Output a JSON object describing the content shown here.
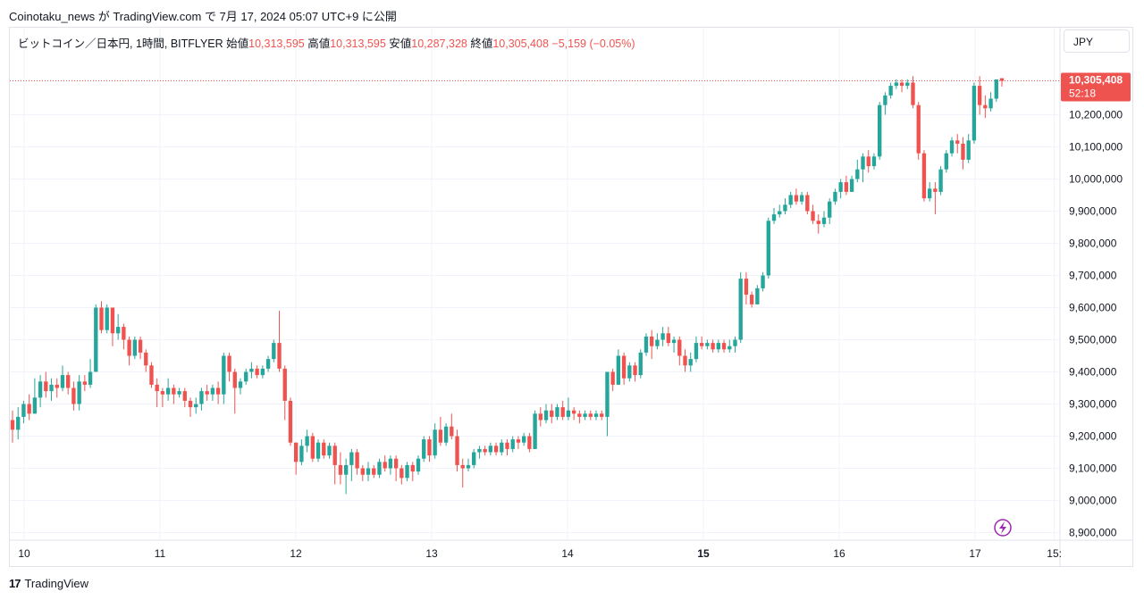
{
  "header": {
    "published_text": "Coinotaku_news が TradingView.com で 7月 17, 2024 05:07 UTC+9 に公開"
  },
  "legend": {
    "symbol": "ビットコイン／日本円, 1時間, BITFLYER",
    "open_label": "始値",
    "open_value": "10,313,595",
    "high_label": "高値",
    "high_value": "10,313,595",
    "low_label": "安値",
    "low_value": "10,287,328",
    "close_label": "終値",
    "close_value": "10,305,408",
    "change": "−5,159 (−0.05%)"
  },
  "currency_button": "JPY",
  "price_tag": {
    "price": "10,305,408",
    "countdown": "52:18"
  },
  "footer": {
    "brand": "TradingView",
    "logo_text": "17"
  },
  "colors": {
    "up": "#26a69a",
    "down": "#ef5350",
    "grid": "#f0f3fa",
    "text": "#131722",
    "lightning": "#9c27b0"
  },
  "icons": {
    "lightning": "lightning-icon",
    "logo": "tradingview-logo-icon"
  },
  "chart_data": {
    "type": "candlestick",
    "title": "ビットコイン／日本円, 1時間, BITFLYER",
    "ylim": [
      8880000,
      10380000
    ],
    "y_ticks": [
      8900000,
      9000000,
      9100000,
      9200000,
      9300000,
      9400000,
      9500000,
      9600000,
      9700000,
      9800000,
      9900000,
      10000000,
      10100000,
      10200000
    ],
    "y_tick_labels": [
      "8,900,000",
      "9,000,000",
      "9,100,000",
      "9,200,000",
      "9,300,000",
      "9,400,000",
      "9,500,000",
      "9,600,000",
      "9,700,000",
      "9,800,000",
      "9,900,000",
      "10,000,000",
      "10,100,000",
      "10,200,000"
    ],
    "x_ticks": [
      {
        "day": 10,
        "label": "10",
        "bold": false
      },
      {
        "day": 11,
        "label": "11",
        "bold": false
      },
      {
        "day": 12,
        "label": "12",
        "bold": false
      },
      {
        "day": 13,
        "label": "13",
        "bold": false
      },
      {
        "day": 14,
        "label": "14",
        "bold": false
      },
      {
        "day": 15,
        "label": "15",
        "bold": true
      },
      {
        "day": 16,
        "label": "16",
        "bold": false
      },
      {
        "day": 17,
        "label": "17",
        "bold": false
      },
      {
        "day": 17.583,
        "label": "15:",
        "bold": false
      }
    ],
    "last_price": 10305408,
    "candles": [
      [
        9250000,
        9220000,
        9280000,
        9180000
      ],
      [
        9220000,
        9260000,
        9290000,
        9190000
      ],
      [
        9260000,
        9300000,
        9310000,
        9240000
      ],
      [
        9300000,
        9270000,
        9330000,
        9250000
      ],
      [
        9270000,
        9320000,
        9380000,
        9270000
      ],
      [
        9320000,
        9370000,
        9390000,
        9290000
      ],
      [
        9370000,
        9340000,
        9400000,
        9320000
      ],
      [
        9340000,
        9360000,
        9380000,
        9310000
      ],
      [
        9360000,
        9350000,
        9380000,
        9320000
      ],
      [
        9350000,
        9390000,
        9420000,
        9340000
      ],
      [
        9390000,
        9350000,
        9400000,
        9330000
      ],
      [
        9350000,
        9300000,
        9370000,
        9280000
      ],
      [
        9300000,
        9370000,
        9390000,
        9280000
      ],
      [
        9370000,
        9360000,
        9390000,
        9340000
      ],
      [
        9360000,
        9400000,
        9440000,
        9350000
      ],
      [
        9400000,
        9600000,
        9610000,
        9400000
      ],
      [
        9600000,
        9530000,
        9620000,
        9520000
      ],
      [
        9530000,
        9600000,
        9610000,
        9520000
      ],
      [
        9600000,
        9520000,
        9600000,
        9480000
      ],
      [
        9520000,
        9540000,
        9580000,
        9500000
      ],
      [
        9540000,
        9500000,
        9550000,
        9470000
      ],
      [
        9500000,
        9450000,
        9510000,
        9420000
      ],
      [
        9450000,
        9500000,
        9510000,
        9440000
      ],
      [
        9500000,
        9460000,
        9510000,
        9440000
      ],
      [
        9460000,
        9420000,
        9470000,
        9400000
      ],
      [
        9420000,
        9360000,
        9430000,
        9350000
      ],
      [
        9360000,
        9340000,
        9380000,
        9290000
      ],
      [
        9340000,
        9330000,
        9350000,
        9290000
      ],
      [
        9330000,
        9350000,
        9380000,
        9310000
      ],
      [
        9350000,
        9330000,
        9360000,
        9300000
      ],
      [
        9330000,
        9340000,
        9350000,
        9320000
      ],
      [
        9340000,
        9310000,
        9350000,
        9290000
      ],
      [
        9310000,
        9290000,
        9320000,
        9260000
      ],
      [
        9290000,
        9300000,
        9320000,
        9270000
      ],
      [
        9300000,
        9340000,
        9350000,
        9280000
      ],
      [
        9340000,
        9330000,
        9360000,
        9310000
      ],
      [
        9330000,
        9350000,
        9360000,
        9310000
      ],
      [
        9350000,
        9330000,
        9370000,
        9300000
      ],
      [
        9330000,
        9450000,
        9460000,
        9300000
      ],
      [
        9450000,
        9400000,
        9460000,
        9370000
      ],
      [
        9400000,
        9350000,
        9410000,
        9270000
      ],
      [
        9350000,
        9370000,
        9380000,
        9330000
      ],
      [
        9370000,
        9400000,
        9410000,
        9360000
      ],
      [
        9400000,
        9410000,
        9430000,
        9380000
      ],
      [
        9410000,
        9390000,
        9420000,
        9380000
      ],
      [
        9390000,
        9410000,
        9420000,
        9380000
      ],
      [
        9410000,
        9440000,
        9450000,
        9400000
      ],
      [
        9440000,
        9490000,
        9500000,
        9430000
      ],
      [
        9490000,
        9410000,
        9590000,
        9400000
      ],
      [
        9410000,
        9310000,
        9420000,
        9250000
      ],
      [
        9310000,
        9180000,
        9320000,
        9170000
      ],
      [
        9180000,
        9120000,
        9180000,
        9080000
      ],
      [
        9120000,
        9170000,
        9190000,
        9110000
      ],
      [
        9170000,
        9200000,
        9220000,
        9150000
      ],
      [
        9200000,
        9130000,
        9210000,
        9120000
      ],
      [
        9130000,
        9180000,
        9190000,
        9120000
      ],
      [
        9180000,
        9140000,
        9190000,
        9130000
      ],
      [
        9140000,
        9170000,
        9180000,
        9130000
      ],
      [
        9170000,
        9110000,
        9180000,
        9050000
      ],
      [
        9110000,
        9080000,
        9150000,
        9050000
      ],
      [
        9080000,
        9110000,
        9130000,
        9020000
      ],
      [
        9110000,
        9150000,
        9160000,
        9060000
      ],
      [
        9150000,
        9100000,
        9160000,
        9080000
      ],
      [
        9100000,
        9080000,
        9110000,
        9060000
      ],
      [
        9080000,
        9100000,
        9120000,
        9060000
      ],
      [
        9100000,
        9080000,
        9110000,
        9070000
      ],
      [
        9080000,
        9120000,
        9130000,
        9070000
      ],
      [
        9120000,
        9100000,
        9140000,
        9090000
      ],
      [
        9100000,
        9130000,
        9140000,
        9080000
      ],
      [
        9130000,
        9100000,
        9140000,
        9060000
      ],
      [
        9100000,
        9070000,
        9110000,
        9050000
      ],
      [
        9070000,
        9110000,
        9120000,
        9060000
      ],
      [
        9110000,
        9090000,
        9120000,
        9060000
      ],
      [
        9090000,
        9130000,
        9140000,
        9080000
      ],
      [
        9130000,
        9190000,
        9200000,
        9120000
      ],
      [
        9190000,
        9140000,
        9200000,
        9120000
      ],
      [
        9140000,
        9220000,
        9240000,
        9130000
      ],
      [
        9220000,
        9180000,
        9260000,
        9170000
      ],
      [
        9180000,
        9230000,
        9240000,
        9170000
      ],
      [
        9230000,
        9200000,
        9270000,
        9190000
      ],
      [
        9200000,
        9110000,
        9220000,
        9090000
      ],
      [
        9110000,
        9100000,
        9130000,
        9040000
      ],
      [
        9100000,
        9110000,
        9130000,
        9090000
      ],
      [
        9110000,
        9150000,
        9160000,
        9100000
      ],
      [
        9150000,
        9160000,
        9170000,
        9130000
      ],
      [
        9160000,
        9150000,
        9170000,
        9140000
      ],
      [
        9150000,
        9170000,
        9180000,
        9140000
      ],
      [
        9170000,
        9150000,
        9180000,
        9140000
      ],
      [
        9150000,
        9180000,
        9190000,
        9140000
      ],
      [
        9180000,
        9160000,
        9190000,
        9140000
      ],
      [
        9160000,
        9190000,
        9200000,
        9150000
      ],
      [
        9190000,
        9180000,
        9200000,
        9160000
      ],
      [
        9180000,
        9200000,
        9210000,
        9170000
      ],
      [
        9200000,
        9160000,
        9210000,
        9150000
      ],
      [
        9160000,
        9270000,
        9280000,
        9160000
      ],
      [
        9270000,
        9250000,
        9290000,
        9230000
      ],
      [
        9250000,
        9280000,
        9300000,
        9240000
      ],
      [
        9280000,
        9260000,
        9300000,
        9240000
      ],
      [
        9260000,
        9290000,
        9300000,
        9250000
      ],
      [
        9290000,
        9260000,
        9310000,
        9250000
      ],
      [
        9260000,
        9280000,
        9320000,
        9250000
      ],
      [
        9280000,
        9270000,
        9290000,
        9250000
      ],
      [
        9270000,
        9260000,
        9280000,
        9240000
      ],
      [
        9260000,
        9270000,
        9280000,
        9250000
      ],
      [
        9270000,
        9260000,
        9280000,
        9250000
      ],
      [
        9260000,
        9270000,
        9280000,
        9250000
      ],
      [
        9270000,
        9260000,
        9280000,
        9250000
      ],
      [
        9260000,
        9400000,
        9400000,
        9200000
      ],
      [
        9400000,
        9360000,
        9410000,
        9340000
      ],
      [
        9360000,
        9450000,
        9470000,
        9360000
      ],
      [
        9450000,
        9380000,
        9460000,
        9360000
      ],
      [
        9380000,
        9420000,
        9430000,
        9370000
      ],
      [
        9420000,
        9390000,
        9430000,
        9370000
      ],
      [
        9390000,
        9460000,
        9470000,
        9380000
      ],
      [
        9460000,
        9510000,
        9520000,
        9450000
      ],
      [
        9510000,
        9480000,
        9530000,
        9440000
      ],
      [
        9480000,
        9500000,
        9520000,
        9470000
      ],
      [
        9500000,
        9520000,
        9540000,
        9480000
      ],
      [
        9520000,
        9490000,
        9540000,
        9480000
      ],
      [
        9490000,
        9500000,
        9510000,
        9460000
      ],
      [
        9500000,
        9450000,
        9510000,
        9420000
      ],
      [
        9450000,
        9420000,
        9470000,
        9400000
      ],
      [
        9420000,
        9440000,
        9460000,
        9400000
      ],
      [
        9440000,
        9490000,
        9510000,
        9430000
      ],
      [
        9490000,
        9480000,
        9510000,
        9470000
      ],
      [
        9480000,
        9490000,
        9500000,
        9470000
      ],
      [
        9490000,
        9470000,
        9500000,
        9460000
      ],
      [
        9470000,
        9490000,
        9500000,
        9460000
      ],
      [
        9490000,
        9470000,
        9500000,
        9460000
      ],
      [
        9470000,
        9480000,
        9500000,
        9460000
      ],
      [
        9480000,
        9500000,
        9510000,
        9460000
      ],
      [
        9500000,
        9690000,
        9710000,
        9490000
      ],
      [
        9690000,
        9640000,
        9710000,
        9610000
      ],
      [
        9640000,
        9610000,
        9650000,
        9600000
      ],
      [
        9610000,
        9660000,
        9670000,
        9610000
      ],
      [
        9660000,
        9700000,
        9710000,
        9650000
      ],
      [
        9700000,
        9870000,
        9880000,
        9690000
      ],
      [
        9870000,
        9890000,
        9910000,
        9860000
      ],
      [
        9890000,
        9900000,
        9920000,
        9880000
      ],
      [
        9900000,
        9920000,
        9940000,
        9890000
      ],
      [
        9920000,
        9950000,
        9960000,
        9910000
      ],
      [
        9950000,
        9930000,
        9970000,
        9920000
      ],
      [
        9930000,
        9950000,
        9960000,
        9920000
      ],
      [
        9950000,
        9900000,
        9960000,
        9890000
      ],
      [
        9900000,
        9870000,
        9920000,
        9860000
      ],
      [
        9870000,
        9860000,
        9890000,
        9830000
      ],
      [
        9860000,
        9880000,
        9900000,
        9850000
      ],
      [
        9880000,
        9930000,
        9940000,
        9860000
      ],
      [
        9930000,
        9960000,
        9970000,
        9920000
      ],
      [
        9960000,
        9990000,
        10000000,
        9940000
      ],
      [
        9990000,
        9960000,
        10010000,
        9950000
      ],
      [
        9960000,
        10000000,
        10010000,
        9960000
      ],
      [
        10000000,
        10030000,
        10060000,
        9990000
      ],
      [
        10030000,
        10070000,
        10080000,
        9990000
      ],
      [
        10070000,
        10040000,
        10090000,
        10020000
      ],
      [
        10040000,
        10070000,
        10080000,
        10030000
      ],
      [
        10070000,
        10230000,
        10240000,
        10060000
      ],
      [
        10230000,
        10260000,
        10270000,
        10200000
      ],
      [
        10260000,
        10290000,
        10300000,
        10250000
      ],
      [
        10290000,
        10300000,
        10310000,
        10280000
      ],
      [
        10300000,
        10290000,
        10310000,
        10270000
      ],
      [
        10290000,
        10300000,
        10310000,
        10280000
      ],
      [
        10300000,
        10230000,
        10320000,
        10220000
      ],
      [
        10230000,
        10080000,
        10240000,
        10060000
      ],
      [
        10080000,
        9940000,
        10090000,
        9930000
      ],
      [
        9940000,
        9970000,
        9990000,
        9930000
      ],
      [
        9970000,
        9960000,
        9990000,
        9890000
      ],
      [
        9960000,
        10030000,
        10040000,
        9950000
      ],
      [
        10030000,
        10080000,
        10090000,
        10020000
      ],
      [
        10080000,
        10120000,
        10130000,
        10070000
      ],
      [
        10120000,
        10110000,
        10140000,
        10080000
      ],
      [
        10110000,
        10060000,
        10130000,
        10030000
      ],
      [
        10060000,
        10120000,
        10140000,
        10050000
      ],
      [
        10120000,
        10290000,
        10300000,
        10110000
      ],
      [
        10290000,
        10230000,
        10320000,
        10200000
      ],
      [
        10230000,
        10220000,
        10260000,
        10190000
      ],
      [
        10220000,
        10250000,
        10270000,
        10210000
      ],
      [
        10250000,
        10310000,
        10310000,
        10240000
      ],
      [
        10313595,
        10305408,
        10313595,
        10287328
      ]
    ]
  }
}
